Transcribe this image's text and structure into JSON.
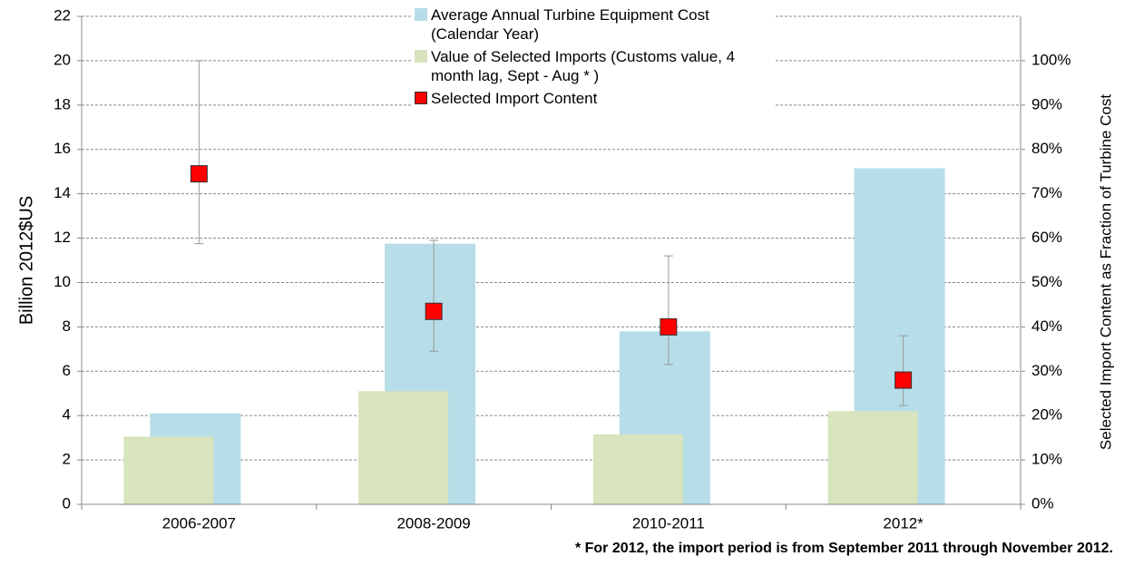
{
  "chart_data": {
    "type": "bar",
    "categories": [
      "2006-2007",
      "2008-2009",
      "2010-2011",
      "2012*"
    ],
    "series": [
      {
        "name": "Average Annual Turbine Equipment Cost (Calendar Year)",
        "color": "#b7dde8",
        "values": [
          4.1,
          11.75,
          7.8,
          15.15
        ]
      },
      {
        "name": "Value of Selected Imports (Customs value, 4 month lag, Sept - Aug * )",
        "color": "#d7e4bd",
        "values": [
          3.05,
          5.1,
          3.15,
          4.2
        ]
      },
      {
        "name": "Selected Import Content",
        "color": "#ff0000",
        "type": "scatter",
        "axis": "y2",
        "values": [
          74.5,
          43.5,
          40,
          28
        ],
        "error_plus": [
          25.5,
          16,
          16,
          10
        ],
        "error_minus": [
          15.75,
          9,
          8.5,
          5.75
        ]
      }
    ],
    "ylabel": "Billion  2012$US",
    "y2label": "Selected Import Content as Fraction of Turbine Cost",
    "ylim": [
      0,
      22
    ],
    "yticks": [
      0,
      2,
      4,
      6,
      8,
      10,
      12,
      14,
      16,
      18,
      20,
      22
    ],
    "y2lim": [
      0,
      110
    ],
    "y2ticks": [
      {
        "value": 0,
        "label": "0%"
      },
      {
        "value": 10,
        "label": "10%"
      },
      {
        "value": 20,
        "label": "20%"
      },
      {
        "value": 30,
        "label": "30%"
      },
      {
        "value": 40,
        "label": "40%"
      },
      {
        "value": 50,
        "label": "50%"
      },
      {
        "value": 60,
        "label": "60%"
      },
      {
        "value": 70,
        "label": "70%"
      },
      {
        "value": 80,
        "label": "80%"
      },
      {
        "value": 90,
        "label": "90%"
      },
      {
        "value": 100,
        "label": "100%"
      }
    ],
    "grid": true,
    "legend": "top",
    "note": "* For 2012, the import period is from September 2011 through November 2012."
  }
}
